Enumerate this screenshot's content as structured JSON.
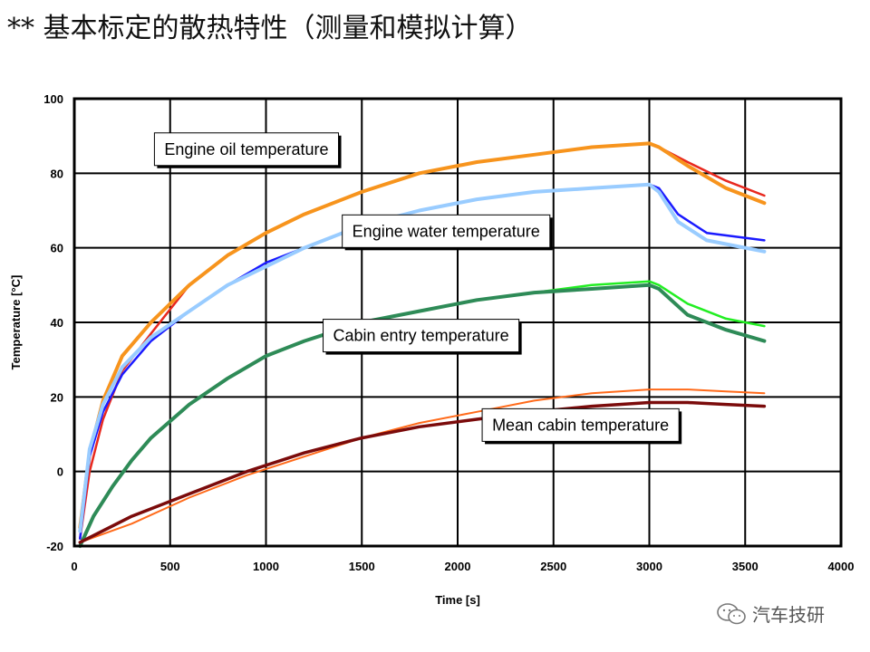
{
  "slide_title": "** 基本标定的散热特性（测量和模拟计算）",
  "watermark_text": "汽车技研",
  "chart_data": {
    "type": "line",
    "xlabel": "Time [s]",
    "ylabel": "Temperature [°C]",
    "xlim": [
      0,
      4000
    ],
    "ylim": [
      -20,
      100
    ],
    "x_ticks": [
      0,
      500,
      1000,
      1500,
      2000,
      2500,
      3000,
      3500,
      4000
    ],
    "y_ticks": [
      -20,
      0,
      20,
      40,
      60,
      80,
      100
    ],
    "grid": true,
    "series": [
      {
        "color": "#e8281e",
        "width": 2.5,
        "x": [
          30,
          80,
          150,
          250,
          400,
          600,
          800,
          1000,
          1200,
          1500,
          1800,
          2100,
          2400,
          2700,
          3000,
          3050,
          3200,
          3400,
          3600
        ],
        "y": [
          -18,
          0,
          14,
          27,
          37,
          50,
          58,
          64,
          69,
          75,
          80,
          83,
          85,
          87,
          88,
          87,
          83,
          78,
          74
        ]
      },
      {
        "color": "#f7941d",
        "width": 4,
        "x": [
          30,
          80,
          150,
          250,
          400,
          600,
          800,
          1000,
          1200,
          1500,
          1800,
          2100,
          2400,
          2700,
          3000,
          3050,
          3200,
          3400,
          3600
        ],
        "y": [
          -15,
          5,
          19,
          31,
          40,
          50,
          58,
          64,
          69,
          75,
          80,
          83,
          85,
          87,
          88,
          87,
          82,
          76,
          72
        ]
      },
      {
        "color": "#1a1aff",
        "width": 2.5,
        "x": [
          30,
          80,
          150,
          250,
          400,
          600,
          800,
          1000,
          1200,
          1500,
          1800,
          2100,
          2400,
          2700,
          3000,
          3050,
          3150,
          3300,
          3600
        ],
        "y": [
          -18,
          4,
          16,
          26,
          35,
          43,
          50,
          56,
          60,
          66,
          70,
          73,
          75,
          76,
          77,
          76,
          69,
          64,
          62
        ]
      },
      {
        "color": "#99ccff",
        "width": 4,
        "x": [
          30,
          80,
          150,
          250,
          400,
          600,
          800,
          1000,
          1200,
          1500,
          1800,
          2100,
          2400,
          2700,
          3000,
          3050,
          3150,
          3300,
          3600
        ],
        "y": [
          -16,
          6,
          18,
          28,
          36,
          43,
          50,
          55,
          60,
          66,
          70,
          73,
          75,
          76,
          77,
          75,
          67,
          62,
          59
        ]
      },
      {
        "color": "#22ee22",
        "width": 2.5,
        "x": [
          30,
          100,
          200,
          300,
          400,
          600,
          800,
          1000,
          1200,
          1500,
          1800,
          2100,
          2400,
          2700,
          3000,
          3050,
          3200,
          3400,
          3600
        ],
        "y": [
          -20,
          -12,
          -4,
          3,
          9,
          18,
          25,
          31,
          35,
          40,
          43,
          46,
          48,
          50,
          51,
          50,
          45,
          41,
          39
        ]
      },
      {
        "color": "#2e8b57",
        "width": 4,
        "x": [
          30,
          100,
          200,
          300,
          400,
          600,
          800,
          1000,
          1200,
          1500,
          1800,
          2100,
          2400,
          2700,
          3000,
          3050,
          3200,
          3400,
          3600
        ],
        "y": [
          -20,
          -12,
          -4,
          3,
          9,
          18,
          25,
          31,
          35,
          40,
          43,
          46,
          48,
          49,
          50,
          49,
          42,
          38,
          35
        ]
      },
      {
        "color": "#ff6a1a",
        "width": 2,
        "x": [
          30,
          300,
          600,
          900,
          1200,
          1500,
          1800,
          2100,
          2400,
          2700,
          3000,
          3200,
          3400,
          3600
        ],
        "y": [
          -19,
          -14,
          -7,
          -1,
          4,
          9,
          13,
          16,
          19,
          21,
          22,
          22,
          21.5,
          21
        ]
      },
      {
        "color": "#7b0b0b",
        "width": 3.5,
        "x": [
          30,
          300,
          600,
          900,
          1200,
          1500,
          1800,
          2100,
          2400,
          2700,
          3000,
          3200,
          3400,
          3600
        ],
        "y": [
          -19,
          -12,
          -6,
          0,
          5,
          9,
          12,
          14,
          16,
          17.5,
          18.5,
          18.5,
          18,
          17.5
        ]
      }
    ],
    "annotations": [
      {
        "text": "Engine oil temperature",
        "x": 470,
        "y": 85
      },
      {
        "text": "Engine water temperature",
        "x": 1450,
        "y": 63
      },
      {
        "text": "Cabin entry temperature",
        "x": 1350,
        "y": 35
      },
      {
        "text": "Mean cabin temperature",
        "x": 2180,
        "y": 11
      }
    ]
  }
}
